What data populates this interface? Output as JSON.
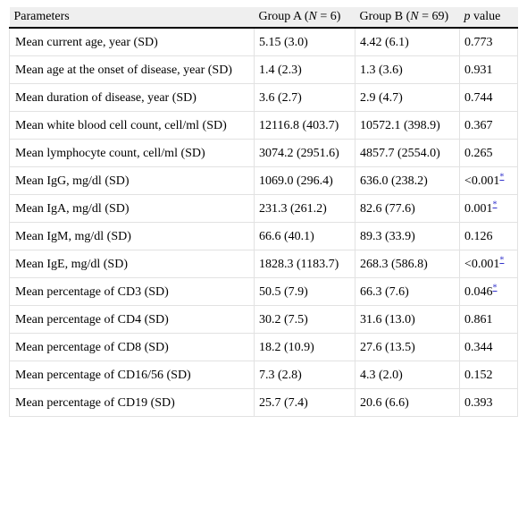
{
  "table": {
    "headers": {
      "parameters": "Parameters",
      "group_a_prefix": "Group A (",
      "group_a_n": "N",
      "group_a_suffix": " = 6)",
      "group_b_prefix": "Group B (",
      "group_b_n": "N",
      "group_b_suffix": " = 69)",
      "p_italic": "p",
      "p_suffix": " value"
    },
    "rows": [
      {
        "parameter": "Mean current age, year (SD)",
        "group_a": "5.15 (3.0)",
        "group_b": "4.42 (6.1)",
        "p_value": "0.773",
        "star": ""
      },
      {
        "parameter": "Mean age at the onset of disease, year (SD)",
        "group_a": "1.4 (2.3)",
        "group_b": "1.3 (3.6)",
        "p_value": "0.931",
        "star": ""
      },
      {
        "parameter": "Mean duration of disease, year (SD)",
        "group_a": "3.6 (2.7)",
        "group_b": "2.9 (4.7)",
        "p_value": "0.744",
        "star": ""
      },
      {
        "parameter": "Mean white blood cell count, cell/ml (SD)",
        "group_a": "12116.8 (403.7)",
        "group_b": "10572.1 (398.9)",
        "p_value": "0.367",
        "star": ""
      },
      {
        "parameter": "Mean lymphocyte count, cell/ml (SD)",
        "group_a": "3074.2 (2951.6)",
        "group_b": "4857.7 (2554.0)",
        "p_value": "0.265",
        "star": ""
      },
      {
        "parameter": "Mean IgG, mg/dl (SD)",
        "group_a": "1069.0 (296.4)",
        "group_b": "636.0 (238.2)",
        "p_value": "<0.001",
        "star": "*"
      },
      {
        "parameter": "Mean IgA, mg/dl (SD)",
        "group_a": "231.3 (261.2)",
        "group_b": "82.6 (77.6)",
        "p_value": "0.001",
        "star": "*"
      },
      {
        "parameter": "Mean IgM, mg/dl (SD)",
        "group_a": "66.6 (40.1)",
        "group_b": "89.3 (33.9)",
        "p_value": "0.126",
        "star": ""
      },
      {
        "parameter": "Mean IgE, mg/dl (SD)",
        "group_a": "1828.3 (1183.7)",
        "group_b": "268.3 (586.8)",
        "p_value": "<0.001",
        "star": "*"
      },
      {
        "parameter": "Mean percentage of CD3 (SD)",
        "group_a": "50.5 (7.9)",
        "group_b": "66.3 (7.6)",
        "p_value": "0.046",
        "star": "*"
      },
      {
        "parameter": "Mean percentage of CD4 (SD)",
        "group_a": "30.2 (7.5)",
        "group_b": "31.6 (13.0)",
        "p_value": "0.861",
        "star": ""
      },
      {
        "parameter": "Mean percentage of CD8 (SD)",
        "group_a": "18.2 (10.9)",
        "group_b": "27.6 (13.5)",
        "p_value": "0.344",
        "star": ""
      },
      {
        "parameter": "Mean percentage of CD16/56 (SD)",
        "group_a": "7.3 (2.8)",
        "group_b": "4.3 (2.0)",
        "p_value": "0.152",
        "star": ""
      },
      {
        "parameter": "Mean percentage of CD19 (SD)",
        "group_a": "25.7 (7.4)",
        "group_b": "20.6 (6.6)",
        "p_value": "0.393",
        "star": ""
      }
    ]
  }
}
